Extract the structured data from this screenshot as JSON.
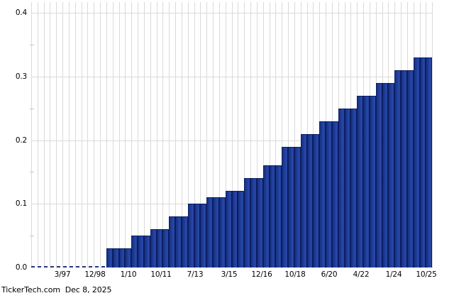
{
  "footer": {
    "text": "TickerTech.com  Dec 8, 2025"
  },
  "chart_data": {
    "type": "bar",
    "title": "",
    "xlabel": "",
    "ylabel": "",
    "x_tick_labels": [
      "3/97",
      "12/98",
      "1/10",
      "10/11",
      "7/13",
      "3/15",
      "12/16",
      "10/18",
      "6/20",
      "4/22",
      "1/24",
      "10/25"
    ],
    "y_tick_labels": [
      "0.0",
      "0.1",
      "0.2",
      "0.3",
      "0.4"
    ],
    "y_minor_ticks": [
      0.05,
      0.15,
      0.25,
      0.35
    ],
    "ylim": [
      0,
      0.42
    ],
    "grid": true,
    "legend": false,
    "bar_color": "#1e3c96",
    "bar_edge_color": "#0c1e63",
    "grid_color": "#dadada",
    "zero_line_color": "#27357f",
    "zero_line_style": "dashed",
    "leading_zero_payments": 12,
    "steps": [
      {
        "value": 0.03,
        "payments": 4
      },
      {
        "value": 0.05,
        "payments": 3
      },
      {
        "value": 0.06,
        "payments": 3
      },
      {
        "value": 0.08,
        "payments": 3
      },
      {
        "value": 0.1,
        "payments": 3
      },
      {
        "value": 0.11,
        "payments": 3
      },
      {
        "value": 0.12,
        "payments": 3
      },
      {
        "value": 0.14,
        "payments": 3
      },
      {
        "value": 0.16,
        "payments": 3
      },
      {
        "value": 0.19,
        "payments": 3
      },
      {
        "value": 0.21,
        "payments": 3
      },
      {
        "value": 0.23,
        "payments": 3
      },
      {
        "value": 0.25,
        "payments": 3
      },
      {
        "value": 0.27,
        "payments": 3
      },
      {
        "value": 0.29,
        "payments": 3
      },
      {
        "value": 0.31,
        "payments": 3
      },
      {
        "value": 0.33,
        "payments": 3
      }
    ]
  }
}
